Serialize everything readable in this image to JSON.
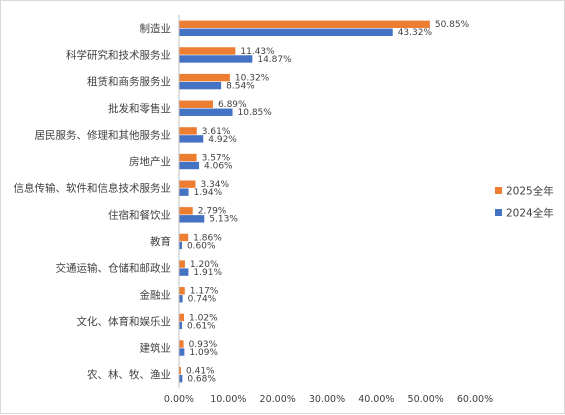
{
  "chart_data": {
    "type": "bar",
    "orientation": "horizontal",
    "categories": [
      "制造业",
      "科学研究和技术服务业",
      "租赁和商务服务业",
      "批发和零售业",
      "居民服务、修理和其他服务业",
      "房地产业",
      "信息传输、软件和信息技术服务业",
      "住宿和餐饮业",
      "教育",
      "交通运输、仓储和邮政业",
      "金融业",
      "文化、体育和娱乐业",
      "建筑业",
      "农、林、牧、渔业"
    ],
    "series": [
      {
        "name": "2025全年",
        "color": "#ed7d31",
        "values": [
          50.85,
          11.43,
          10.32,
          6.89,
          3.61,
          3.57,
          3.34,
          2.79,
          1.86,
          1.2,
          1.17,
          1.02,
          0.93,
          0.41
        ],
        "labels": [
          "50.85%",
          "11.43%",
          "10.32%",
          "6.89%",
          "3.61%",
          "3.57%",
          "3.34%",
          "2.79%",
          "1.86%",
          "1.20%",
          "1.17%",
          "1.02%",
          "0.93%",
          "0.41%"
        ]
      },
      {
        "name": "2024全年",
        "color": "#4472c4",
        "values": [
          43.32,
          14.87,
          8.54,
          10.85,
          4.92,
          4.06,
          1.94,
          5.13,
          0.6,
          1.91,
          0.74,
          0.61,
          1.09,
          0.68
        ],
        "labels": [
          "43.32%",
          "14.87%",
          "8.54%",
          "10.85%",
          "4.92%",
          "4.06%",
          "1.94%",
          "5.13%",
          "0.60%",
          "1.91%",
          "0.74%",
          "0.61%",
          "1.09%",
          "0.68%"
        ]
      }
    ],
    "xlim": [
      0,
      60
    ],
    "xticks": [
      0,
      10,
      20,
      30,
      40,
      50,
      60
    ],
    "xtick_labels": [
      "0.00%",
      "10.00%",
      "20.00%",
      "30.00%",
      "40.00%",
      "50.00%",
      "60.00%"
    ],
    "grid": false,
    "legend": "right"
  }
}
